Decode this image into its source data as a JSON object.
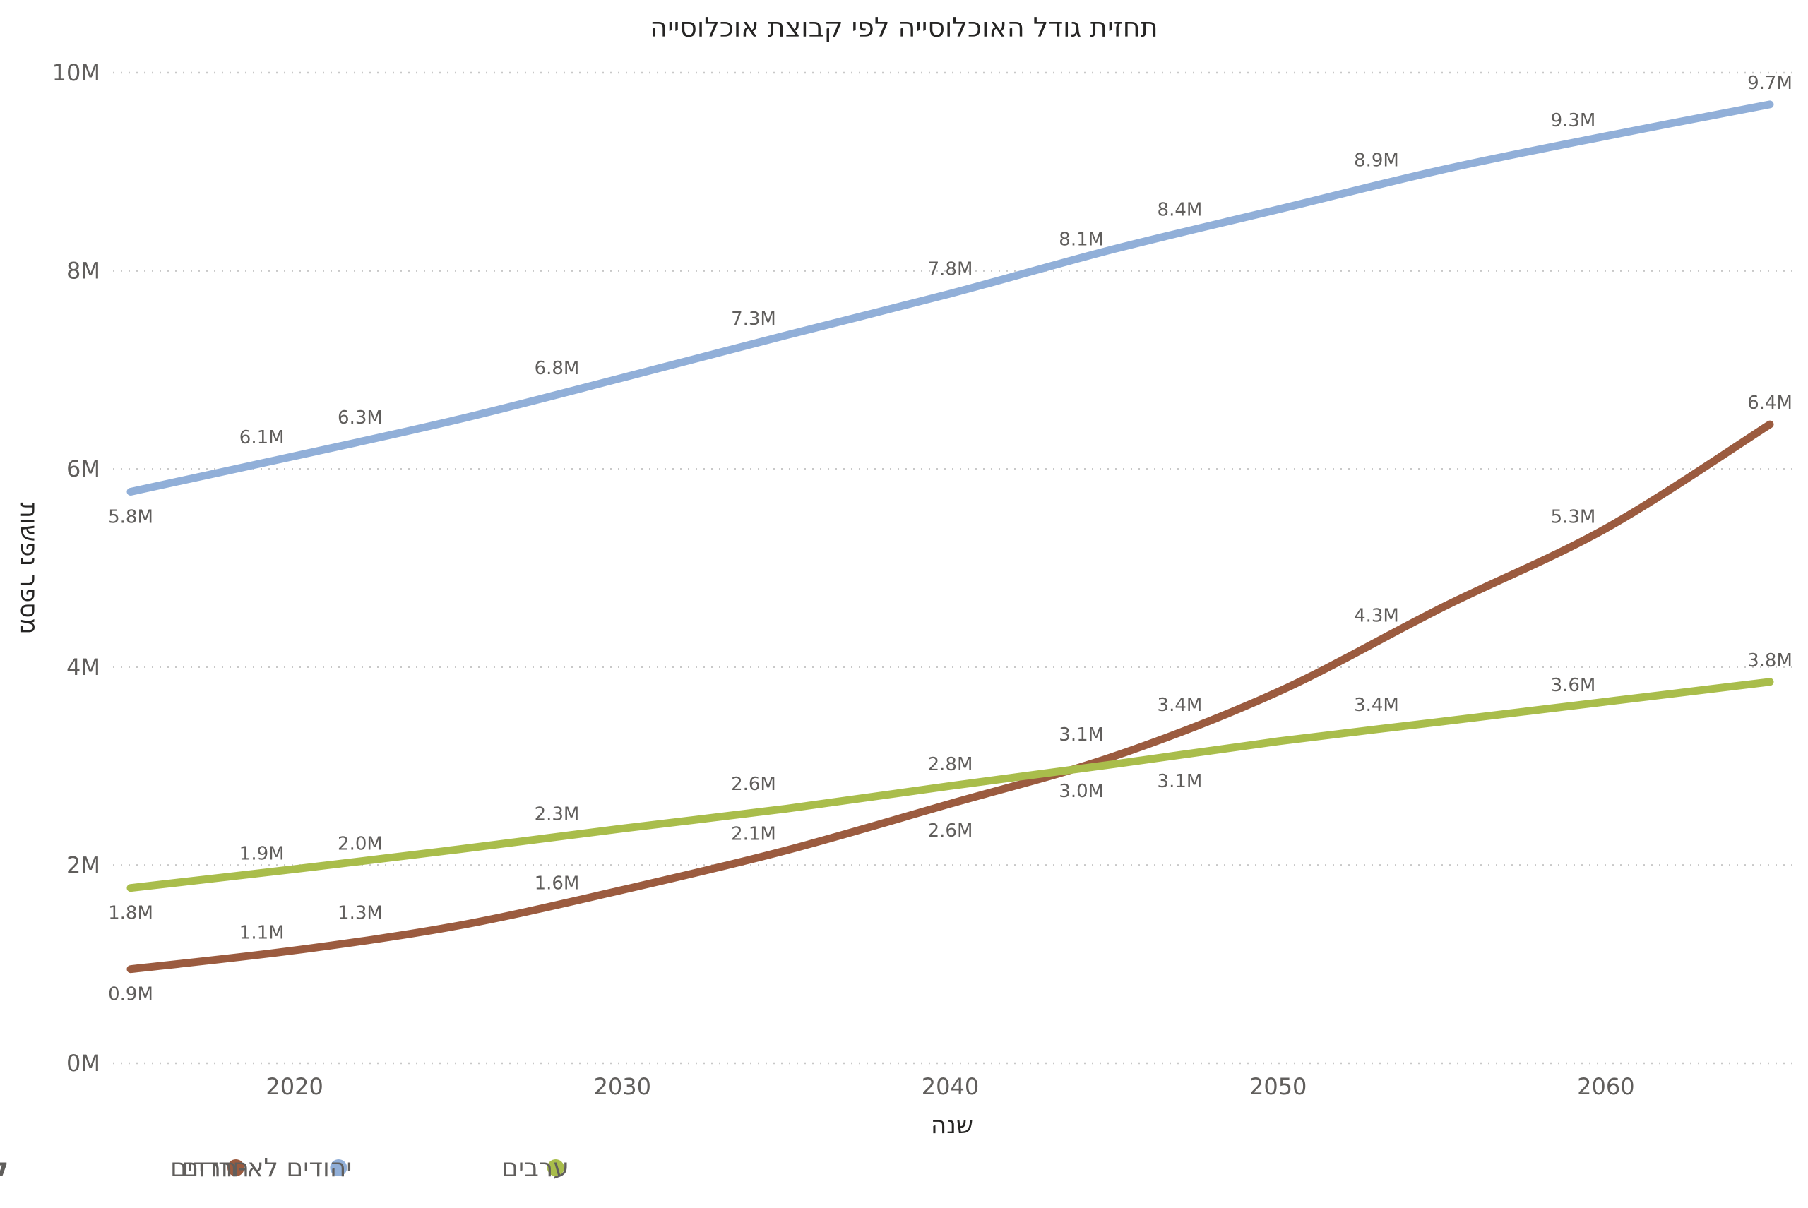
{
  "chart_data": {
    "type": "line",
    "title": "תחזית גודל האוכלוסייה לפי קבוצת אוכלוסייה",
    "xlabel": "שנה",
    "ylabel": "מספר נפשות",
    "x_ticks": [
      "2020",
      "2030",
      "2040",
      "2050",
      "2060"
    ],
    "y_ticks": [
      "0M",
      "2M",
      "4M",
      "6M",
      "8M",
      "10M"
    ],
    "xlim": [
      2015,
      2065
    ],
    "ylim": [
      0,
      10
    ],
    "grid": "horizontal dotted",
    "legend_title": "קבוצת אוכלוסייה",
    "legend_position": "bottom-left",
    "series": [
      {
        "name": "חרדים",
        "color": "#9b5b3f",
        "points": [
          [
            2015,
            0.95
          ],
          [
            2020,
            1.14
          ],
          [
            2025,
            1.39
          ],
          [
            2030,
            1.75
          ],
          [
            2035,
            2.15
          ],
          [
            2040,
            2.62
          ],
          [
            2045,
            3.1
          ],
          [
            2050,
            3.75
          ],
          [
            2055,
            4.6
          ],
          [
            2060,
            5.4
          ],
          [
            2065,
            6.45
          ]
        ],
        "labels": [
          {
            "x": 2015,
            "y": 0.95,
            "text": "0.9M",
            "pos": "below"
          },
          {
            "x": 2019,
            "y": 1.1,
            "text": "1.1M",
            "pos": "above"
          },
          {
            "x": 2022,
            "y": 1.3,
            "text": "1.3M",
            "pos": "above"
          },
          {
            "x": 2028,
            "y": 1.6,
            "text": "1.6M",
            "pos": "above"
          },
          {
            "x": 2034,
            "y": 2.1,
            "text": "2.1M",
            "pos": "above"
          },
          {
            "x": 2040,
            "y": 2.6,
            "text": "2.6M",
            "pos": "below"
          },
          {
            "x": 2044,
            "y": 3.1,
            "text": "3.1M",
            "pos": "above"
          },
          {
            "x": 2047,
            "y": 3.4,
            "text": "3.4M",
            "pos": "above"
          },
          {
            "x": 2053,
            "y": 4.3,
            "text": "4.3M",
            "pos": "above"
          },
          {
            "x": 2059,
            "y": 5.3,
            "text": "5.3M",
            "pos": "above"
          },
          {
            "x": 2065,
            "y": 6.45,
            "text": "6.4M",
            "pos": "above"
          }
        ]
      },
      {
        "name": "יהודים לא-חרדים",
        "color": "#91afd8",
        "points": [
          [
            2015,
            5.77
          ],
          [
            2020,
            6.13
          ],
          [
            2025,
            6.5
          ],
          [
            2030,
            6.92
          ],
          [
            2035,
            7.35
          ],
          [
            2040,
            7.77
          ],
          [
            2045,
            8.22
          ],
          [
            2050,
            8.62
          ],
          [
            2055,
            9.02
          ],
          [
            2060,
            9.36
          ],
          [
            2065,
            9.68
          ]
        ],
        "labels": [
          {
            "x": 2015,
            "y": 5.77,
            "text": "5.8M",
            "pos": "below"
          },
          {
            "x": 2019,
            "y": 6.1,
            "text": "6.1M",
            "pos": "above"
          },
          {
            "x": 2022,
            "y": 6.3,
            "text": "6.3M",
            "pos": "above"
          },
          {
            "x": 2028,
            "y": 6.8,
            "text": "6.8M",
            "pos": "above"
          },
          {
            "x": 2034,
            "y": 7.3,
            "text": "7.3M",
            "pos": "above"
          },
          {
            "x": 2040,
            "y": 7.8,
            "text": "7.8M",
            "pos": "above"
          },
          {
            "x": 2044,
            "y": 8.1,
            "text": "8.1M",
            "pos": "above"
          },
          {
            "x": 2047,
            "y": 8.4,
            "text": "8.4M",
            "pos": "above"
          },
          {
            "x": 2053,
            "y": 8.9,
            "text": "8.9M",
            "pos": "above"
          },
          {
            "x": 2059,
            "y": 9.3,
            "text": "9.3M",
            "pos": "above"
          },
          {
            "x": 2065,
            "y": 9.68,
            "text": "9.7M",
            "pos": "above"
          }
        ]
      },
      {
        "name": "ערבים",
        "color": "#a9bd4b",
        "points": [
          [
            2015,
            1.77
          ],
          [
            2020,
            1.96
          ],
          [
            2025,
            2.16
          ],
          [
            2030,
            2.37
          ],
          [
            2035,
            2.57
          ],
          [
            2040,
            2.8
          ],
          [
            2045,
            3.02
          ],
          [
            2050,
            3.25
          ],
          [
            2055,
            3.45
          ],
          [
            2060,
            3.65
          ],
          [
            2065,
            3.85
          ]
        ],
        "labels": [
          {
            "x": 2015,
            "y": 1.77,
            "text": "1.8M",
            "pos": "below"
          },
          {
            "x": 2019,
            "y": 1.9,
            "text": "1.9M",
            "pos": "above"
          },
          {
            "x": 2022,
            "y": 2.0,
            "text": "2.0M",
            "pos": "above"
          },
          {
            "x": 2028,
            "y": 2.3,
            "text": "2.3M",
            "pos": "above"
          },
          {
            "x": 2034,
            "y": 2.6,
            "text": "2.6M",
            "pos": "above"
          },
          {
            "x": 2040,
            "y": 2.8,
            "text": "2.8M",
            "pos": "above"
          },
          {
            "x": 2044,
            "y": 3.0,
            "text": "3.0M",
            "pos": "below"
          },
          {
            "x": 2047,
            "y": 3.1,
            "text": "3.1M",
            "pos": "below"
          },
          {
            "x": 2053,
            "y": 3.4,
            "text": "3.4M",
            "pos": "above"
          },
          {
            "x": 2059,
            "y": 3.6,
            "text": "3.6M",
            "pos": "above"
          },
          {
            "x": 2065,
            "y": 3.85,
            "text": "3.8M",
            "pos": "above"
          }
        ]
      }
    ]
  }
}
